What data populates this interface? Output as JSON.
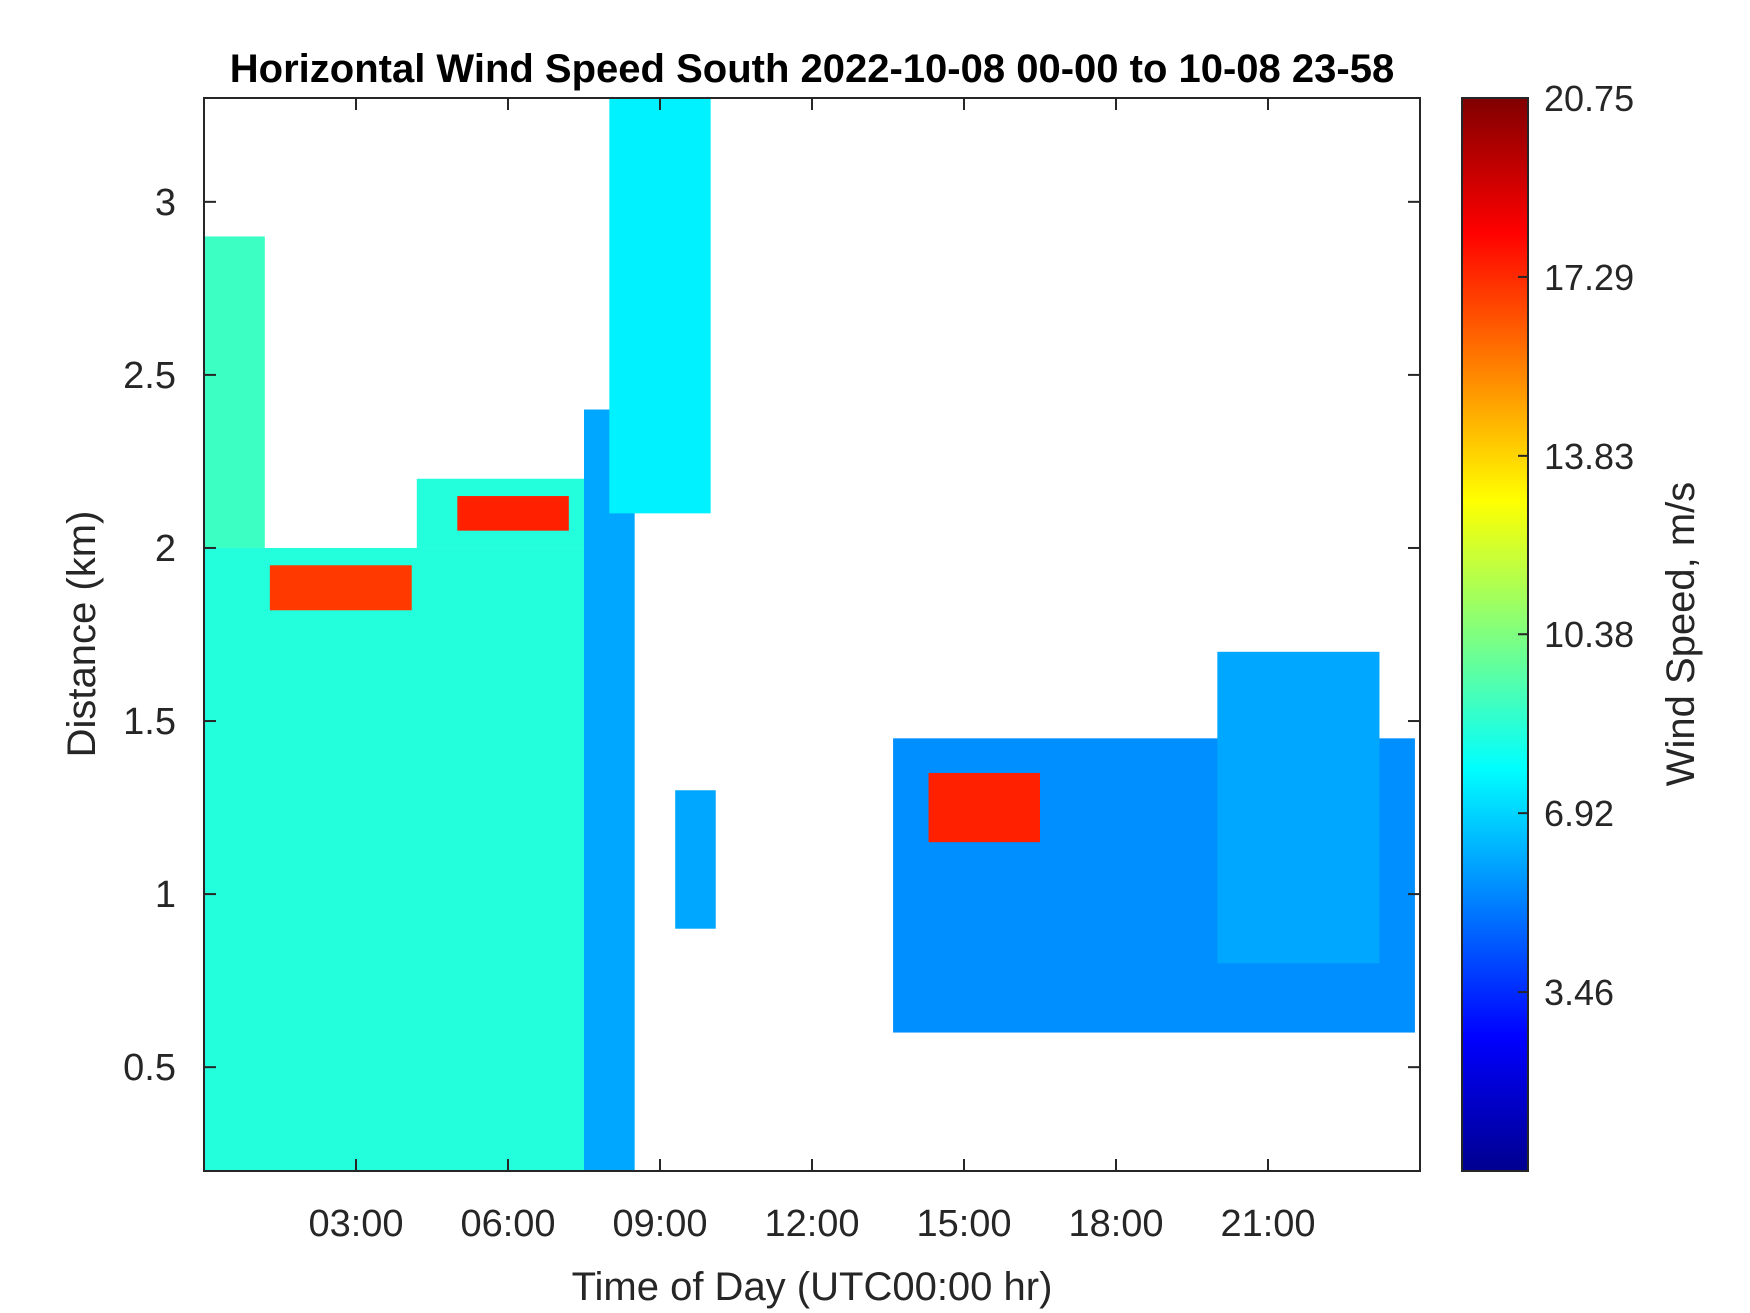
{
  "chart_data": {
    "type": "heatmap",
    "title": "Horizontal Wind Speed South 2022-10-08 00-00 to 10-08 23-58",
    "xlabel": "Time of Day (UTC00:00 hr)",
    "ylabel": "Distance (km)",
    "x_unit": "hours",
    "xlim": [
      0,
      24
    ],
    "ylim": [
      0.2,
      3.3
    ],
    "x_ticks": [
      {
        "value": 3,
        "label": "03:00"
      },
      {
        "value": 6,
        "label": "06:00"
      },
      {
        "value": 9,
        "label": "09:00"
      },
      {
        "value": 12,
        "label": "12:00"
      },
      {
        "value": 15,
        "label": "15:00"
      },
      {
        "value": 18,
        "label": "18:00"
      },
      {
        "value": 21,
        "label": "21:00"
      }
    ],
    "y_ticks": [
      {
        "value": 0.5,
        "label": "0.5"
      },
      {
        "value": 1,
        "label": "1"
      },
      {
        "value": 1.5,
        "label": "1.5"
      },
      {
        "value": 2,
        "label": "2"
      },
      {
        "value": 2.5,
        "label": "2.5"
      },
      {
        "value": 3,
        "label": "3"
      }
    ],
    "colorbar": {
      "label": "Wind Speed, m/s",
      "colormap": "jet",
      "range": [
        0,
        20.75
      ],
      "ticks": [
        {
          "value": 3.46,
          "label": "3.46"
        },
        {
          "value": 6.92,
          "label": "6.92"
        },
        {
          "value": 10.38,
          "label": "10.38"
        },
        {
          "value": 13.83,
          "label": "13.83"
        },
        {
          "value": 17.29,
          "label": "17.29"
        },
        {
          "value": 20.75,
          "label": "20.75"
        }
      ]
    },
    "regions": [
      {
        "x": [
          0.0,
          7.5
        ],
        "y": [
          0.2,
          2.0
        ],
        "speed": 8.5
      },
      {
        "x": [
          0.0,
          1.2
        ],
        "y": [
          2.0,
          2.9
        ],
        "speed": 9.0
      },
      {
        "x": [
          1.3,
          4.1
        ],
        "y": [
          1.82,
          1.95
        ],
        "speed": 17.0
      },
      {
        "x": [
          4.2,
          7.5
        ],
        "y": [
          2.0,
          2.2
        ],
        "speed": 8.5
      },
      {
        "x": [
          5.0,
          7.2
        ],
        "y": [
          2.05,
          2.15
        ],
        "speed": 17.5
      },
      {
        "x": [
          7.5,
          8.5
        ],
        "y": [
          0.2,
          2.4
        ],
        "speed": 6.0
      },
      {
        "x": [
          8.0,
          10.0
        ],
        "y": [
          2.1,
          3.3
        ],
        "speed": 7.5
      },
      {
        "x": [
          9.3,
          10.1
        ],
        "y": [
          0.9,
          1.3
        ],
        "speed": 6.0
      },
      {
        "x": [
          13.6,
          23.9
        ],
        "y": [
          0.6,
          1.45
        ],
        "speed": 5.5
      },
      {
        "x": [
          14.3,
          16.5
        ],
        "y": [
          1.15,
          1.35
        ],
        "speed": 17.5
      },
      {
        "x": [
          20.0,
          23.2
        ],
        "y": [
          0.8,
          1.7
        ],
        "speed": 6.0
      }
    ]
  }
}
